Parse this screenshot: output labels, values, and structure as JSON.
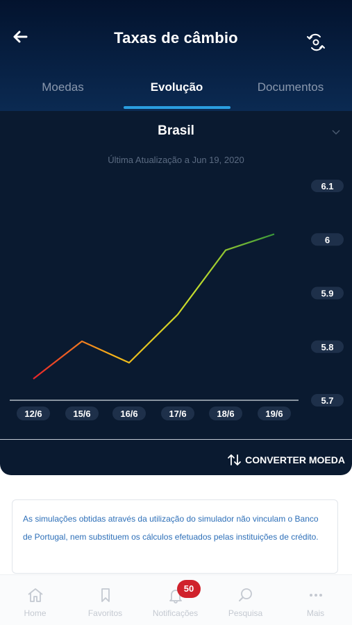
{
  "header": {
    "title": "Taxas de câmbio",
    "back_icon": "arrow-left-icon",
    "refresh_icon": "refresh-icon"
  },
  "tabs": [
    {
      "label": "Moedas",
      "active": false
    },
    {
      "label": "Evolução",
      "active": true
    },
    {
      "label": "Documentos",
      "active": false
    }
  ],
  "country": {
    "name": "Brasil"
  },
  "last_updated": "Última Atualização a Jun 19, 2020",
  "chart_data": {
    "type": "line",
    "x": [
      "12/6",
      "15/6",
      "16/6",
      "17/6",
      "18/6",
      "19/6"
    ],
    "series": [
      {
        "values": [
          5.74,
          5.81,
          5.77,
          5.86,
          5.98,
          6.01
        ]
      }
    ],
    "ylim": [
      5.7,
      6.1
    ],
    "yticks": [
      "6.1",
      "6",
      "5.9",
      "5.8",
      "5.7"
    ],
    "ytick_values": [
      6.1,
      6.0,
      5.9,
      5.8,
      5.7
    ],
    "gradient_colors": [
      "#e8232a",
      "#f6b418",
      "#c5de2d",
      "#3a9a3a"
    ],
    "tick_label_bg": "#1e304a"
  },
  "convert_label": "CONVERTER MOEDA",
  "disclaimer": "As simulações obtidas através da utilização do simulador não vinculam o Banco de Portugal, nem substituem os cálculos efetuados pelas instituições de crédito.",
  "tabbar": [
    {
      "label": "Home",
      "icon": "home-icon"
    },
    {
      "label": "Favoritos",
      "icon": "bookmark-icon"
    },
    {
      "label": "Notificações",
      "icon": "bell-icon",
      "badge": "50"
    },
    {
      "label": "Pesquisa",
      "icon": "search-icon"
    },
    {
      "label": "Mais",
      "icon": "more-icon"
    }
  ],
  "colors": {
    "header_top": "#03132e",
    "panel_bg": "#0a1a30",
    "accent": "#2a9ee0",
    "badge": "#d0222c",
    "disclaimer_text": "#2d6fb8"
  }
}
